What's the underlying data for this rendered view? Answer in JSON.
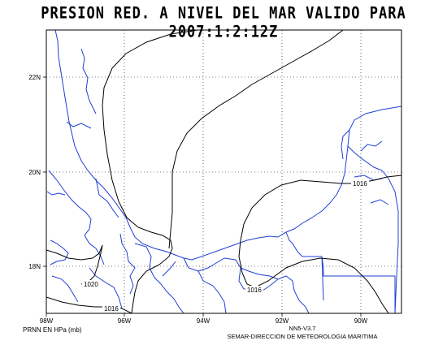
{
  "title": "PRESION RED. A NIVEL DEL MAR VALIDO PARA 2007:1:2:12Z",
  "map": {
    "lat_labels": [
      {
        "lat": 22,
        "label": "22N"
      },
      {
        "lat": 20,
        "label": "20N"
      },
      {
        "lat": 18,
        "label": "18N"
      }
    ],
    "lon_labels": [
      {
        "lon": -98,
        "label": "98W"
      },
      {
        "lon": -96,
        "label": "96W"
      },
      {
        "lon": -94,
        "label": "94W"
      },
      {
        "lon": -92,
        "label": "92W"
      },
      {
        "lon": -90,
        "label": "90W"
      }
    ],
    "extent": {
      "lon_min": -98,
      "lon_max": -89,
      "lat_min": 17.4,
      "lat_max": 23.6
    },
    "contour_labels": [
      {
        "text": "1016",
        "lon": -89.8,
        "lat": 19.7
      },
      {
        "text": "1020",
        "lon": -97.4,
        "lat": 17.8
      },
      {
        "text": "1016",
        "lon": -96.4,
        "lat": 17.3
      },
      {
        "text": "1016",
        "lon": -92.7,
        "lat": 17.75
      }
    ],
    "colors": {
      "coast": "#1f3fd6",
      "isobar": "#000000",
      "grid": "#000000"
    }
  },
  "footer": {
    "units": "PRNN EN HPa (mb)",
    "version": "NN5-V3.7",
    "agency": "SEMAR-DIRECCION DE METEOROLOGIA MARITIMA"
  }
}
